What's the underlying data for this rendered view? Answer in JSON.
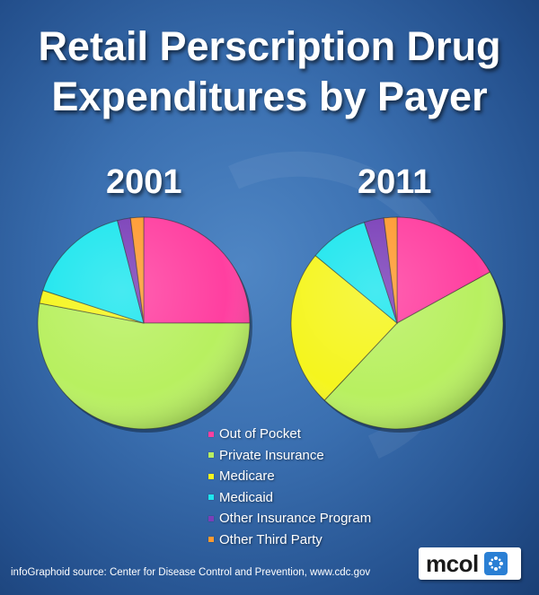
{
  "chart_data": {
    "type": "pie",
    "title": "Retail Perscription Drug Expenditures by Payer",
    "title_lines": [
      "Retail Perscription Drug",
      "Expenditures by Payer"
    ],
    "categories": [
      "Out of Pocket",
      "Private Insurance",
      "Medicare",
      "Medicaid",
      "Other Insurance Program",
      "Other Third Party"
    ],
    "colors": [
      "#ff3fa0",
      "#b8f060",
      "#f5f51e",
      "#1ee6ee",
      "#7a3fb8",
      "#ff9a30"
    ],
    "pies": [
      {
        "name": "2001",
        "values": [
          25,
          53,
          2,
          16,
          2,
          2
        ]
      },
      {
        "name": "2011",
        "values": [
          17,
          45,
          24,
          9,
          3,
          2
        ]
      }
    ],
    "legend_position": "bottom-center",
    "source": "infoGraphoid source:   Center for Disease Control and Prevention,  www.cdc.gov"
  },
  "logo": {
    "text": "mcol",
    "mark_icon": "pinwheel-icon"
  }
}
